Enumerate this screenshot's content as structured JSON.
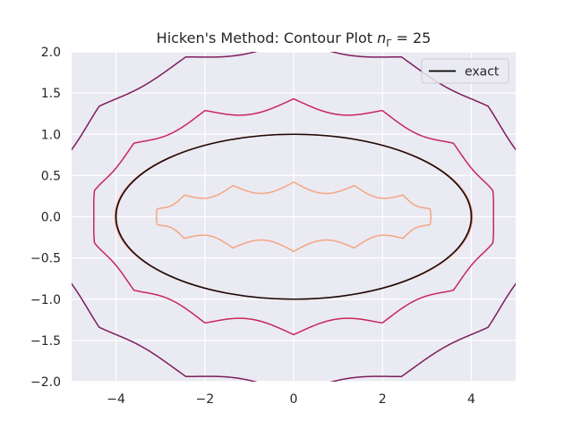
{
  "chart_data": {
    "type": "contour",
    "title": "Hicken's Method: Contour Plot",
    "title_symbol": "n",
    "title_subscript": "Γ",
    "title_value": "= 25",
    "xlabel": "",
    "ylabel": "",
    "xlim": [
      -5,
      5
    ],
    "ylim": [
      -2,
      2
    ],
    "x_ticks": [
      -4,
      -2,
      0,
      2,
      4
    ],
    "x_tick_labels": [
      "−4",
      "−2",
      "0",
      "2",
      "4"
    ],
    "y_ticks": [
      -2.0,
      -1.5,
      -1.0,
      -0.5,
      0.0,
      0.5,
      1.0,
      1.5,
      2.0
    ],
    "y_tick_labels": [
      "−2.0",
      "−1.5",
      "−1.0",
      "−0.5",
      "0.0",
      "0.5",
      "1.0",
      "1.5",
      "2.0"
    ],
    "grid": true,
    "background": "#eaeaf2",
    "legend": {
      "position": "top-right",
      "entries": [
        {
          "label": "exact",
          "color": "#000000"
        }
      ]
    },
    "exact_curve": {
      "shape": "ellipse",
      "center": [
        0,
        0
      ],
      "semi_axis_x": 4.0,
      "semi_axis_y": 1.0,
      "color": "#1a0a0a"
    },
    "contours": [
      {
        "color": "#f4a582",
        "cusps": 25,
        "bumps": 7,
        "base_x": 3.15,
        "base_y": 0.42,
        "depth_y": 0.13,
        "depth_x": 0.06
      },
      {
        "color": "#e8825e",
        "cusps": 25,
        "bumps": 0,
        "base_x": 4.02,
        "base_y": 1.0,
        "depth_y": 0.0,
        "depth_x": 0.0
      },
      {
        "color": "#c8275a",
        "cusps": 25,
        "bumps": 7,
        "base_x": 4.6,
        "base_y": 1.43,
        "depth_y": 0.16,
        "depth_x": 0.1
      },
      {
        "color": "#7d1d5e",
        "cusps": 25,
        "bumps": 7,
        "base_x": 5.6,
        "base_y": 2.15,
        "depth_y": 0.14,
        "depth_x": 0.15
      }
    ]
  }
}
